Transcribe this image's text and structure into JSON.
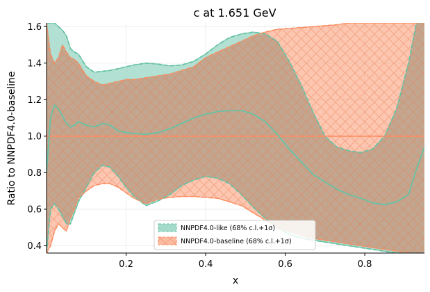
{
  "chart_data": {
    "type": "line",
    "title": "c at 1.651 GeV",
    "xlabel": "x",
    "ylabel": "Ratio to NNPDF4.0-baseline",
    "xlim": [
      0.0,
      0.95
    ],
    "ylim": [
      0.36,
      1.62
    ],
    "xticks": [
      "0.2",
      "0.4",
      "0.6",
      "0.8"
    ],
    "yticks": [
      "0.4",
      "0.6",
      "0.8",
      "1.0",
      "1.2",
      "1.4",
      "1.6"
    ],
    "grid": true,
    "legend_position": "lower-center",
    "x": [
      0.0,
      0.01,
      0.02,
      0.03,
      0.04,
      0.05,
      0.06,
      0.07,
      0.08,
      0.1,
      0.12,
      0.14,
      0.16,
      0.18,
      0.2,
      0.22,
      0.25,
      0.28,
      0.31,
      0.34,
      0.37,
      0.4,
      0.43,
      0.46,
      0.49,
      0.52,
      0.55,
      0.58,
      0.61,
      0.64,
      0.67,
      0.7,
      0.73,
      0.76,
      0.79,
      0.82,
      0.85,
      0.88,
      0.91,
      0.93,
      0.95
    ],
    "series": [
      {
        "name": "NNPDF4.0-like (68% c.l.+1σ)",
        "color": "#66c2a5",
        "central": [
          0.8,
          1.1,
          1.17,
          1.15,
          1.11,
          1.07,
          1.05,
          1.06,
          1.08,
          1.06,
          1.05,
          1.07,
          1.06,
          1.03,
          1.02,
          1.015,
          1.01,
          1.02,
          1.04,
          1.07,
          1.1,
          1.12,
          1.135,
          1.14,
          1.14,
          1.12,
          1.08,
          1.01,
          0.93,
          0.86,
          0.79,
          0.75,
          0.71,
          0.68,
          0.66,
          0.635,
          0.625,
          0.64,
          0.68,
          0.82,
          0.94
        ],
        "upper": [
          1.62,
          1.62,
          1.62,
          1.6,
          1.58,
          1.55,
          1.48,
          1.46,
          1.45,
          1.38,
          1.35,
          1.355,
          1.36,
          1.37,
          1.38,
          1.39,
          1.4,
          1.395,
          1.385,
          1.39,
          1.41,
          1.45,
          1.5,
          1.54,
          1.56,
          1.57,
          1.56,
          1.52,
          1.41,
          1.28,
          1.13,
          1.0,
          0.94,
          0.92,
          0.91,
          0.93,
          1.0,
          1.15,
          1.4,
          1.62,
          1.62
        ],
        "lower": [
          0.36,
          0.6,
          0.63,
          0.6,
          0.56,
          0.52,
          0.52,
          0.58,
          0.64,
          0.72,
          0.8,
          0.84,
          0.83,
          0.78,
          0.72,
          0.67,
          0.62,
          0.645,
          0.68,
          0.73,
          0.76,
          0.78,
          0.77,
          0.74,
          0.68,
          0.61,
          0.55,
          0.5,
          0.46,
          0.44,
          0.43,
          0.42,
          0.41,
          0.4,
          0.39,
          0.38,
          0.37,
          0.36,
          0.36,
          0.36,
          0.36
        ]
      },
      {
        "name": "NNPDF4.0-baseline (68% c.l.+1σ)",
        "color": "#fc8d62",
        "central": [
          1.0,
          1.0,
          1.0,
          1.0,
          1.0,
          1.0,
          1.0,
          1.0,
          1.0,
          1.0,
          1.0,
          1.0,
          1.0,
          1.0,
          1.0,
          1.0,
          1.0,
          1.0,
          1.0,
          1.0,
          1.0,
          1.0,
          1.0,
          1.0,
          1.0,
          1.0,
          1.0,
          1.0,
          1.0,
          1.0,
          1.0,
          1.0,
          1.0,
          1.0,
          1.0,
          1.0,
          1.0,
          1.0,
          1.0,
          1.0,
          1.0
        ],
        "upper": [
          1.62,
          1.45,
          1.4,
          1.43,
          1.5,
          1.46,
          1.43,
          1.42,
          1.4,
          1.33,
          1.3,
          1.28,
          1.29,
          1.3,
          1.31,
          1.31,
          1.32,
          1.33,
          1.34,
          1.36,
          1.38,
          1.43,
          1.46,
          1.49,
          1.52,
          1.55,
          1.57,
          1.585,
          1.59,
          1.595,
          1.6,
          1.605,
          1.61,
          1.62,
          1.62,
          1.62,
          1.62,
          1.62,
          1.62,
          1.62,
          1.62
        ],
        "lower": [
          0.36,
          0.4,
          0.48,
          0.52,
          0.5,
          0.48,
          0.55,
          0.6,
          0.66,
          0.7,
          0.73,
          0.74,
          0.74,
          0.72,
          0.69,
          0.66,
          0.63,
          0.655,
          0.665,
          0.67,
          0.67,
          0.665,
          0.66,
          0.64,
          0.62,
          0.58,
          0.54,
          0.5,
          0.48,
          0.46,
          0.44,
          0.43,
          0.42,
          0.41,
          0.4,
          0.39,
          0.38,
          0.37,
          0.36,
          0.36,
          0.36
        ]
      }
    ]
  }
}
